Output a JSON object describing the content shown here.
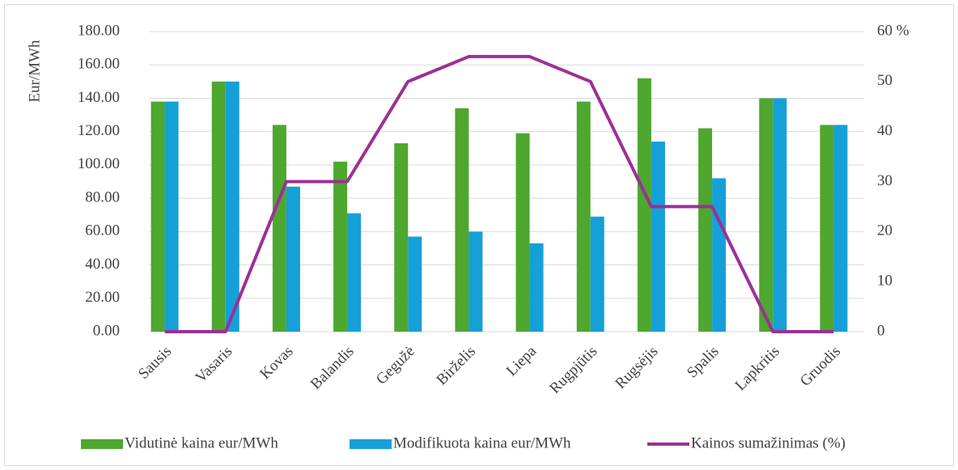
{
  "chart_data": {
    "type": "bar_line",
    "ylabel": "Eur/MWh",
    "categories": [
      "Sausis",
      "Vasaris",
      "Kovas",
      "Balandis",
      "Gegužė",
      "Birželis",
      "Liepa",
      "Rugpjūtis",
      "Rugsėjis",
      "Spalis",
      "Lapkritis",
      "Gruodis"
    ],
    "series": [
      {
        "name": "Vidutinė kaina eur/MWh",
        "color": "#4ea72e",
        "type": "bar",
        "values": [
          138,
          150,
          124,
          102,
          113,
          134,
          119,
          138,
          152,
          122,
          140,
          124
        ]
      },
      {
        "name": "Modifikuota kaina eur/MWh",
        "color": "#15a0d8",
        "type": "bar",
        "values": [
          138,
          150,
          87,
          71,
          57,
          60,
          53,
          69,
          114,
          92,
          140,
          124
        ]
      },
      {
        "name": "Kainos sumažinimas (%)",
        "color": "#9b3096",
        "type": "line",
        "axis": "y2",
        "values": [
          0,
          0,
          30,
          30,
          50,
          55,
          55,
          50,
          25,
          25,
          0,
          0
        ]
      }
    ],
    "ylim": [
      0,
      180
    ],
    "yticks": [
      {
        "value": 0,
        "label": "0.00"
      },
      {
        "value": 20,
        "label": "20.00"
      },
      {
        "value": 40,
        "label": "40.00"
      },
      {
        "value": 60,
        "label": "60.00"
      },
      {
        "value": 80,
        "label": "80.00"
      },
      {
        "value": 100,
        "label": "100.00"
      },
      {
        "value": 120,
        "label": "120.00"
      },
      {
        "value": 140,
        "label": "140.00"
      },
      {
        "value": 160,
        "label": "160.00"
      },
      {
        "value": 180,
        "label": "180.00"
      }
    ],
    "y2lim": [
      0,
      60
    ],
    "y2ticks": [
      0,
      10,
      20,
      30,
      40,
      50,
      {
        "value": 60,
        "label": "60 %"
      }
    ],
    "grid": true,
    "legend": "bottom"
  }
}
